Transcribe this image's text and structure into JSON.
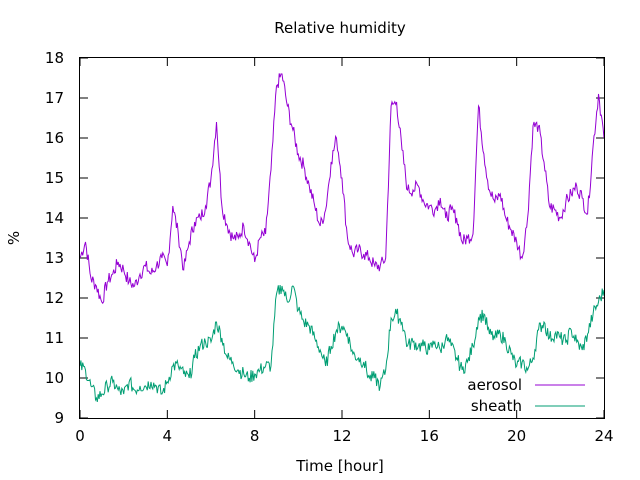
{
  "chart_data": {
    "type": "line",
    "title": "Relative humidity",
    "xlabel": "Time [hour]",
    "ylabel": "%",
    "xlim": [
      0,
      24
    ],
    "ylim": [
      9,
      18
    ],
    "xticks": [
      "0",
      "4",
      "8",
      "12",
      "16",
      "20",
      "24"
    ],
    "yticks": [
      "9",
      "10",
      "11",
      "12",
      "13",
      "14",
      "15",
      "16",
      "17",
      "18"
    ],
    "grid": false,
    "legend_position": "bottom-right",
    "series": [
      {
        "name": "aerosol",
        "color": "#9400d3",
        "x": [
          0,
          0.25,
          0.5,
          0.75,
          1.0,
          1.25,
          1.5,
          1.75,
          2.0,
          2.25,
          2.5,
          2.75,
          3.0,
          3.25,
          3.5,
          3.75,
          4.0,
          4.25,
          4.5,
          4.75,
          5.0,
          5.25,
          5.5,
          5.75,
          6.0,
          6.25,
          6.5,
          6.75,
          7.0,
          7.25,
          7.5,
          7.75,
          8.0,
          8.25,
          8.5,
          8.75,
          9.0,
          9.25,
          9.5,
          9.75,
          10.0,
          10.25,
          10.5,
          10.75,
          11.0,
          11.25,
          11.5,
          11.75,
          12.0,
          12.25,
          12.5,
          12.75,
          13.0,
          13.25,
          13.5,
          13.75,
          14.0,
          14.25,
          14.5,
          14.75,
          15.0,
          15.25,
          15.5,
          15.75,
          16.0,
          16.25,
          16.5,
          16.75,
          17.0,
          17.25,
          17.5,
          17.75,
          18.0,
          18.25,
          18.5,
          18.75,
          19.0,
          19.25,
          19.5,
          19.75,
          20.0,
          20.25,
          20.5,
          20.75,
          21.0,
          21.25,
          21.5,
          21.75,
          22.0,
          22.25,
          22.5,
          22.75,
          23.0,
          23.25,
          23.5,
          23.75,
          24.0
        ],
        "values": [
          13.0,
          13.4,
          12.5,
          12.3,
          11.9,
          12.4,
          12.6,
          12.9,
          12.7,
          12.4,
          12.3,
          12.6,
          12.8,
          12.6,
          12.8,
          13.0,
          12.8,
          14.3,
          13.6,
          12.7,
          13.4,
          13.9,
          14.0,
          14.3,
          15.0,
          16.4,
          14.3,
          13.8,
          13.5,
          13.5,
          13.8,
          13.4,
          12.9,
          13.5,
          13.6,
          15.2,
          17.3,
          17.6,
          16.8,
          16.2,
          15.6,
          15.3,
          14.8,
          14.3,
          13.8,
          14.2,
          15.4,
          16.0,
          15.0,
          13.5,
          13.1,
          13.2,
          13.1,
          13.0,
          12.8,
          12.8,
          13.0,
          16.8,
          16.9,
          15.7,
          14.7,
          14.7,
          14.8,
          14.4,
          14.3,
          14.2,
          14.5,
          14.0,
          14.2,
          14.0,
          13.4,
          13.5,
          13.6,
          16.8,
          15.6,
          14.7,
          14.4,
          14.6,
          14.0,
          13.7,
          13.4,
          13.0,
          14.0,
          16.3,
          16.3,
          15.4,
          14.3,
          14.2,
          14.0,
          14.4,
          14.6,
          14.8,
          14.5,
          14.1,
          15.8,
          17.1,
          16.0
        ]
      },
      {
        "name": "sheath",
        "color": "#009e73",
        "x": [
          0,
          0.25,
          0.5,
          0.75,
          1.0,
          1.25,
          1.5,
          1.75,
          2.0,
          2.25,
          2.5,
          2.75,
          3.0,
          3.25,
          3.5,
          3.75,
          4.0,
          4.25,
          4.5,
          4.75,
          5.0,
          5.25,
          5.5,
          5.75,
          6.0,
          6.25,
          6.5,
          6.75,
          7.0,
          7.25,
          7.5,
          7.75,
          8.0,
          8.25,
          8.5,
          8.75,
          9.0,
          9.25,
          9.5,
          9.75,
          10.0,
          10.25,
          10.5,
          10.75,
          11.0,
          11.25,
          11.5,
          11.75,
          12.0,
          12.25,
          12.5,
          12.75,
          13.0,
          13.25,
          13.5,
          13.75,
          14.0,
          14.25,
          14.5,
          14.75,
          15.0,
          15.25,
          15.5,
          15.75,
          16.0,
          16.25,
          16.5,
          16.75,
          17.0,
          17.25,
          17.5,
          17.75,
          18.0,
          18.25,
          18.5,
          18.75,
          19.0,
          19.25,
          19.5,
          19.75,
          20.0,
          20.25,
          20.5,
          20.75,
          21.0,
          21.25,
          21.5,
          21.75,
          22.0,
          22.25,
          22.5,
          22.75,
          23.0,
          23.25,
          23.5,
          23.75,
          24.0
        ],
        "values": [
          10.3,
          10.2,
          9.8,
          9.5,
          9.6,
          9.8,
          9.9,
          9.7,
          9.6,
          9.9,
          9.7,
          9.8,
          9.8,
          9.9,
          9.8,
          9.6,
          9.9,
          10.3,
          10.3,
          10.1,
          10.0,
          10.5,
          10.8,
          10.9,
          10.9,
          11.4,
          11.0,
          10.5,
          10.4,
          10.2,
          10.1,
          10.0,
          10.1,
          10.2,
          10.3,
          10.3,
          12.1,
          12.3,
          11.9,
          12.3,
          11.7,
          11.4,
          11.3,
          11.0,
          10.7,
          10.3,
          10.8,
          11.2,
          11.3,
          11.1,
          10.6,
          10.5,
          10.4,
          10.0,
          10.0,
          9.8,
          10.2,
          11.5,
          11.6,
          11.4,
          10.8,
          10.9,
          10.8,
          10.8,
          10.7,
          10.9,
          10.7,
          11.0,
          10.8,
          10.5,
          10.2,
          10.4,
          10.8,
          11.5,
          11.6,
          11.1,
          11.0,
          11.1,
          10.9,
          10.6,
          10.3,
          10.4,
          10.2,
          10.5,
          11.2,
          11.4,
          11.0,
          11.1,
          11.0,
          10.9,
          11.2,
          10.9,
          10.7,
          11.1,
          11.6,
          11.9,
          12.2
        ]
      }
    ]
  }
}
